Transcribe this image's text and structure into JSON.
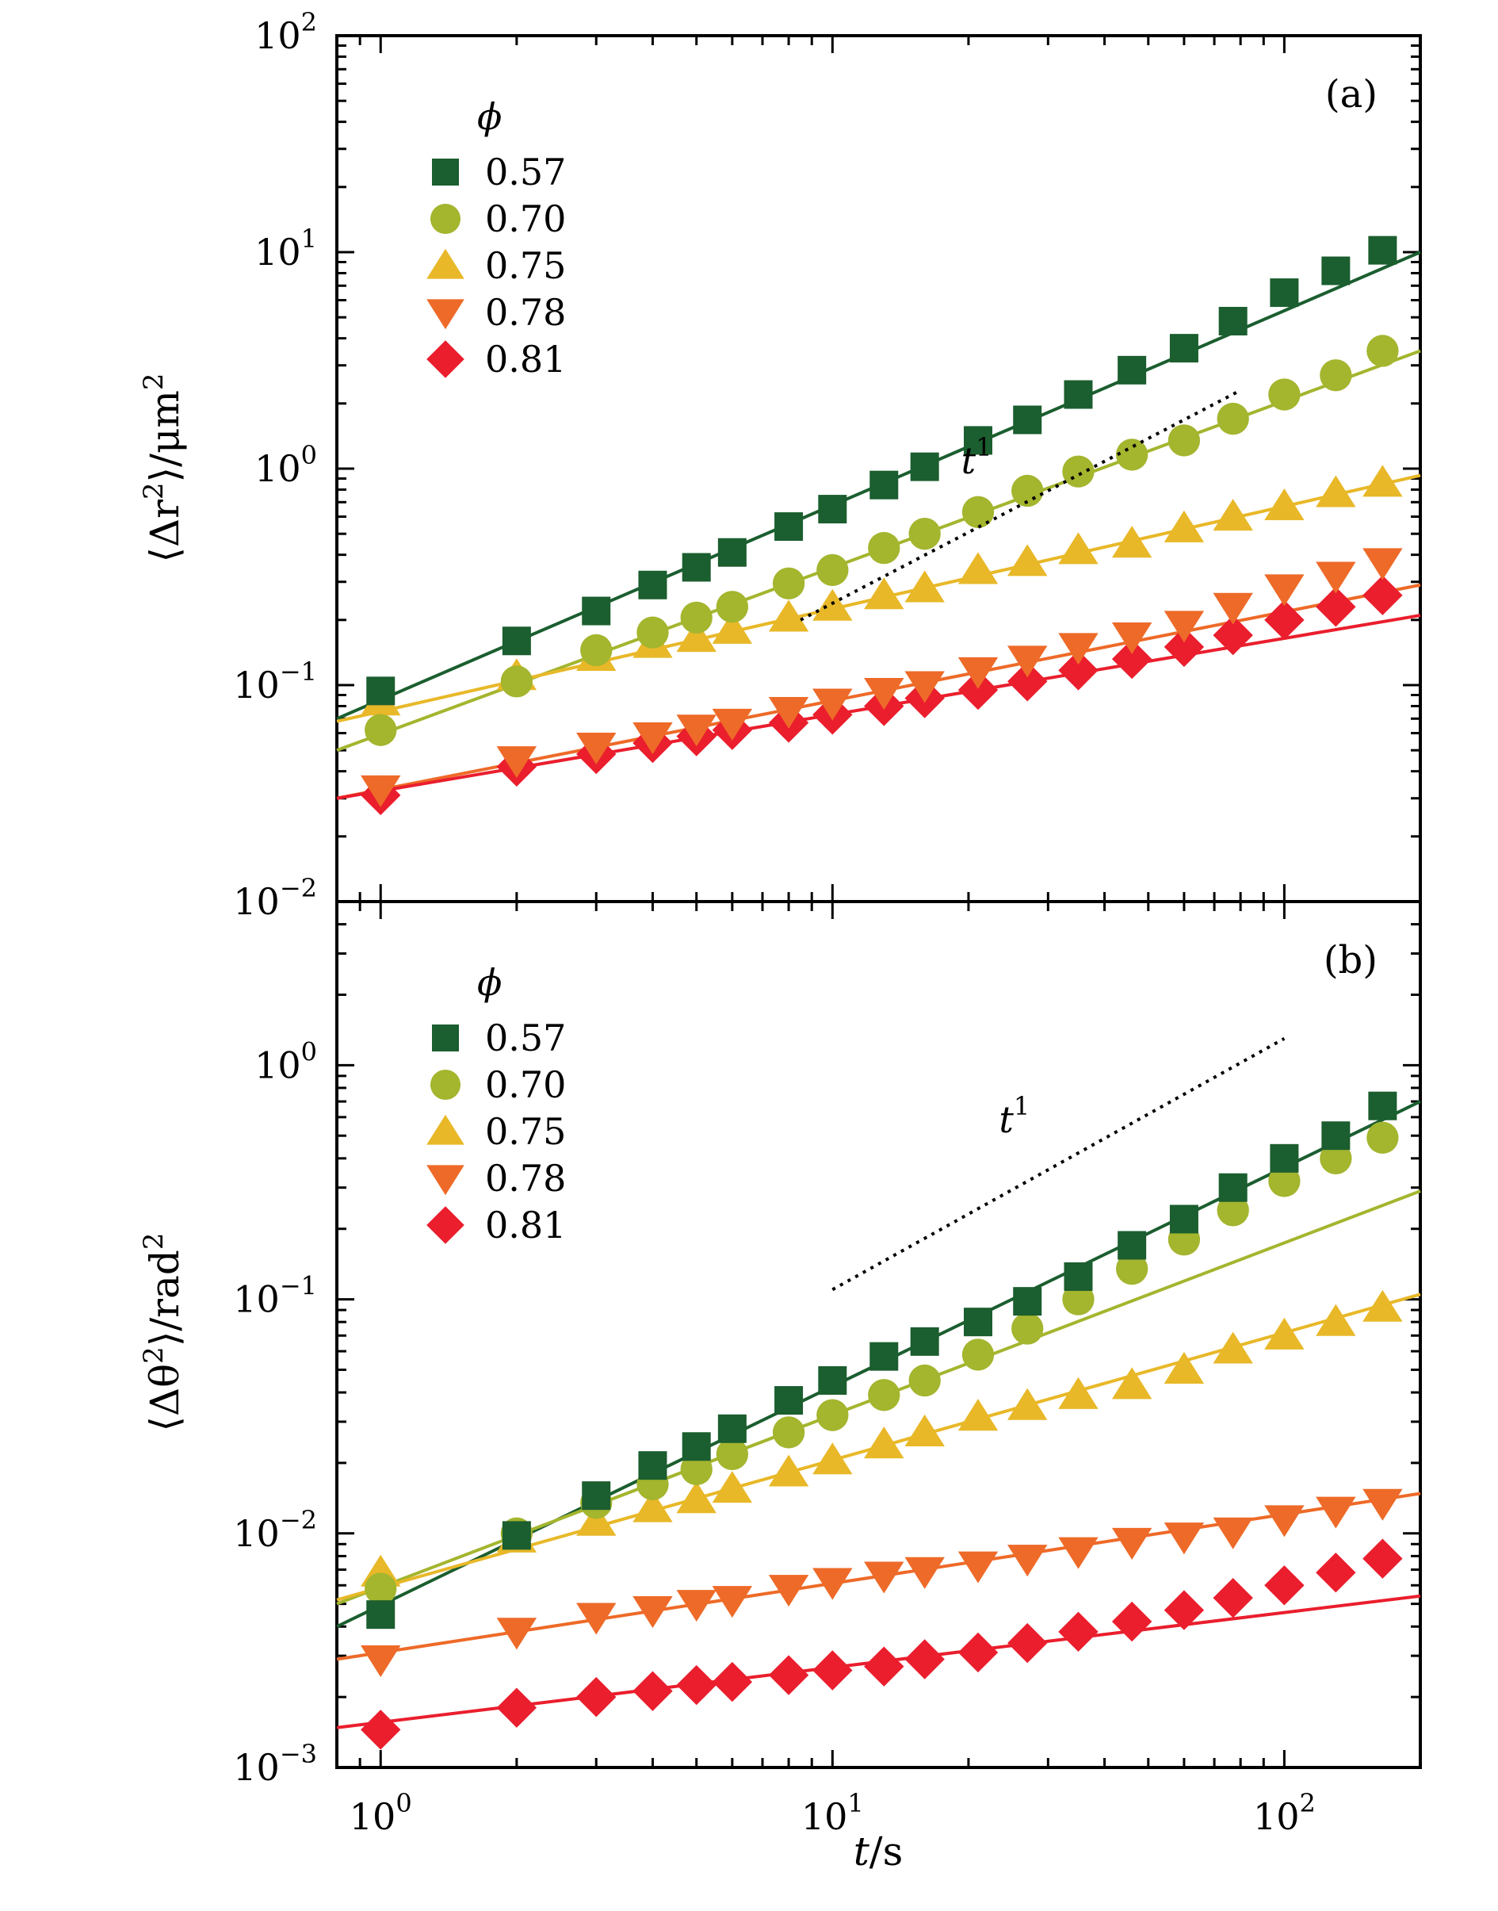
{
  "chart_data": [
    {
      "type": "scatter",
      "panel_label": "(a)",
      "scale": "log-log",
      "xlim": [
        0.8,
        200
      ],
      "ylim": [
        0.01,
        100
      ],
      "xlabel": "t/s",
      "ylabel": "⟨Δr²⟩/μm²",
      "ylabel_text": "⟨Δr",
      "ylabel_sup": "2",
      "ylabel_tail": "⟩/μm",
      "ylabel_tail_sup": "2",
      "y_ticks": [
        {
          "value": 0.01,
          "base": "10",
          "exp": "−2"
        },
        {
          "value": 0.1,
          "base": "10",
          "exp": "−1"
        },
        {
          "value": 1,
          "base": "10",
          "exp": "0"
        },
        {
          "value": 10,
          "base": "10",
          "exp": "1"
        },
        {
          "value": 100,
          "base": "10",
          "exp": "2"
        }
      ],
      "legend_title": "ϕ",
      "legend_position": "top-left",
      "reference_line": {
        "label": "t",
        "label_sup": "1",
        "x": [
          8.5,
          80
        ],
        "y": [
          0.2,
          2.3
        ]
      },
      "series": [
        {
          "name": "0.57",
          "color": "#1b5e2f",
          "marker": "square",
          "x": [
            1,
            2,
            3,
            4,
            5,
            6,
            8,
            10,
            13,
            16,
            21,
            27,
            35,
            46,
            60,
            77,
            100,
            130,
            165
          ],
          "y": [
            0.094,
            0.16,
            0.22,
            0.29,
            0.35,
            0.41,
            0.54,
            0.65,
            0.84,
            1.02,
            1.35,
            1.68,
            2.2,
            2.85,
            3.6,
            4.8,
            6.5,
            8.2,
            10.2
          ],
          "fit": {
            "x": [
              0.8,
              200
            ],
            "y": [
              0.07,
              10.0
            ]
          }
        },
        {
          "name": "0.70",
          "color": "#a4b52e",
          "marker": "circle",
          "x": [
            1,
            2,
            3,
            4,
            5,
            6,
            8,
            10,
            13,
            16,
            21,
            27,
            35,
            46,
            60,
            77,
            100,
            130,
            165
          ],
          "y": [
            0.062,
            0.104,
            0.145,
            0.175,
            0.205,
            0.23,
            0.295,
            0.34,
            0.43,
            0.5,
            0.63,
            0.79,
            0.97,
            1.16,
            1.35,
            1.7,
            2.2,
            2.7,
            3.5
          ],
          "fit": {
            "x": [
              0.8,
              200
            ],
            "y": [
              0.05,
              3.5
            ]
          }
        },
        {
          "name": "0.75",
          "color": "#e8b828",
          "marker": "triangle-up",
          "x": [
            1,
            2,
            3,
            4,
            5,
            6,
            8,
            10,
            13,
            16,
            21,
            27,
            35,
            46,
            60,
            77,
            100,
            130,
            165
          ],
          "y": [
            0.084,
            0.11,
            0.135,
            0.155,
            0.165,
            0.18,
            0.205,
            0.23,
            0.26,
            0.28,
            0.34,
            0.37,
            0.42,
            0.45,
            0.53,
            0.6,
            0.67,
            0.77,
            0.86
          ],
          "fit": {
            "x": [
              0.8,
              200
            ],
            "y": [
              0.068,
              0.93
            ]
          }
        },
        {
          "name": "0.78",
          "color": "#ee6a28",
          "marker": "triangle-down",
          "x": [
            1,
            2,
            3,
            4,
            5,
            6,
            8,
            10,
            13,
            16,
            21,
            27,
            35,
            46,
            60,
            77,
            100,
            130,
            165
          ],
          "y": [
            0.033,
            0.045,
            0.052,
            0.058,
            0.063,
            0.067,
            0.076,
            0.083,
            0.093,
            0.1,
            0.116,
            0.131,
            0.15,
            0.168,
            0.19,
            0.23,
            0.28,
            0.32,
            0.37
          ],
          "fit": {
            "x": [
              0.8,
              200
            ],
            "y": [
              0.03,
              0.29
            ]
          }
        },
        {
          "name": "0.81",
          "color": "#ea1e2d",
          "marker": "diamond",
          "x": [
            1,
            2,
            3,
            4,
            5,
            6,
            8,
            10,
            13,
            16,
            21,
            27,
            35,
            46,
            60,
            77,
            100,
            130,
            165
          ],
          "y": [
            0.031,
            0.042,
            0.048,
            0.054,
            0.058,
            0.062,
            0.067,
            0.073,
            0.08,
            0.087,
            0.095,
            0.104,
            0.117,
            0.132,
            0.15,
            0.17,
            0.2,
            0.23,
            0.26
          ],
          "fit": {
            "x": [
              0.8,
              200
            ],
            "y": [
              0.03,
              0.21
            ]
          }
        }
      ]
    },
    {
      "type": "scatter",
      "panel_label": "(b)",
      "scale": "log-log",
      "xlim": [
        0.8,
        200
      ],
      "ylim": [
        0.001,
        5
      ],
      "xlabel": "t/s",
      "ylabel": "⟨Δθ²⟩/rad²",
      "ylabel_text": "⟨Δθ",
      "ylabel_sup": "2",
      "ylabel_tail": "⟩/rad",
      "ylabel_tail_sup": "2",
      "x_ticks": [
        {
          "value": 1,
          "base": "10",
          "exp": "0"
        },
        {
          "value": 10,
          "base": "10",
          "exp": "1"
        },
        {
          "value": 100,
          "base": "10",
          "exp": "2"
        }
      ],
      "y_ticks": [
        {
          "value": 0.001,
          "base": "10",
          "exp": "−3"
        },
        {
          "value": 0.01,
          "base": "10",
          "exp": "−2"
        },
        {
          "value": 0.1,
          "base": "10",
          "exp": "−1"
        },
        {
          "value": 1,
          "base": "10",
          "exp": "0"
        }
      ],
      "x_title_italic": "t",
      "x_title_rest": "/s",
      "legend_title": "ϕ",
      "legend_position": "top-left",
      "reference_line": {
        "label": "t",
        "label_sup": "1",
        "x": [
          10,
          100
        ],
        "y": [
          0.11,
          1.3
        ]
      },
      "series": [
        {
          "name": "0.57",
          "color": "#1b5e2f",
          "marker": "square",
          "x": [
            1,
            2,
            3,
            4,
            5,
            6,
            8,
            10,
            13,
            16,
            21,
            27,
            35,
            46,
            60,
            77,
            100,
            130,
            165
          ],
          "y": [
            0.0045,
            0.0098,
            0.0145,
            0.0195,
            0.0235,
            0.028,
            0.037,
            0.045,
            0.057,
            0.066,
            0.08,
            0.098,
            0.125,
            0.17,
            0.22,
            0.3,
            0.4,
            0.5,
            0.67
          ],
          "fit": {
            "x": [
              0.8,
              200
            ],
            "y": [
              0.004,
              0.7
            ]
          }
        },
        {
          "name": "0.70",
          "color": "#a4b52e",
          "marker": "circle",
          "x": [
            1,
            2,
            3,
            4,
            5,
            6,
            8,
            10,
            13,
            16,
            21,
            27,
            35,
            46,
            60,
            77,
            100,
            130,
            165
          ],
          "y": [
            0.0058,
            0.01,
            0.0135,
            0.0162,
            0.0188,
            0.0218,
            0.027,
            0.032,
            0.039,
            0.045,
            0.058,
            0.075,
            0.1,
            0.135,
            0.18,
            0.24,
            0.32,
            0.4,
            0.49
          ],
          "fit": {
            "x": [
              0.8,
              200
            ],
            "y": [
              0.005,
              0.29
            ]
          }
        },
        {
          "name": "0.75",
          "color": "#e8b828",
          "marker": "triangle-up",
          "x": [
            1,
            2,
            3,
            4,
            5,
            6,
            8,
            10,
            13,
            16,
            21,
            27,
            35,
            46,
            60,
            77,
            100,
            130,
            165
          ],
          "y": [
            0.0068,
            0.0095,
            0.0112,
            0.0128,
            0.014,
            0.0155,
            0.0182,
            0.0205,
            0.024,
            0.027,
            0.0315,
            0.035,
            0.039,
            0.043,
            0.05,
            0.061,
            0.07,
            0.08,
            0.092
          ],
          "fit": {
            "x": [
              0.8,
              200
            ],
            "y": [
              0.0052,
              0.105
            ]
          }
        },
        {
          "name": "0.78",
          "color": "#ee6a28",
          "marker": "triangle-down",
          "x": [
            1,
            2,
            3,
            4,
            5,
            6,
            8,
            10,
            13,
            16,
            21,
            27,
            35,
            46,
            60,
            77,
            100,
            130,
            165
          ],
          "y": [
            0.0029,
            0.0038,
            0.0044,
            0.0047,
            0.005,
            0.0052,
            0.0058,
            0.0062,
            0.0066,
            0.0069,
            0.0073,
            0.0078,
            0.0084,
            0.0092,
            0.0097,
            0.0102,
            0.0115,
            0.0125,
            0.0135
          ],
          "fit": {
            "x": [
              0.8,
              200
            ],
            "y": [
              0.0029,
              0.0148
            ]
          }
        },
        {
          "name": "0.81",
          "color": "#ea1e2d",
          "marker": "diamond",
          "x": [
            1,
            2,
            3,
            4,
            5,
            6,
            8,
            10,
            13,
            16,
            21,
            27,
            35,
            46,
            60,
            77,
            100,
            130,
            165
          ],
          "y": [
            0.00145,
            0.0018,
            0.002,
            0.00212,
            0.00225,
            0.00232,
            0.00248,
            0.0026,
            0.0027,
            0.0029,
            0.0031,
            0.0034,
            0.0038,
            0.0042,
            0.0047,
            0.0053,
            0.006,
            0.0068,
            0.0078
          ],
          "fit": {
            "x": [
              0.8,
              200
            ],
            "y": [
              0.00148,
              0.0054
            ]
          }
        }
      ]
    }
  ]
}
